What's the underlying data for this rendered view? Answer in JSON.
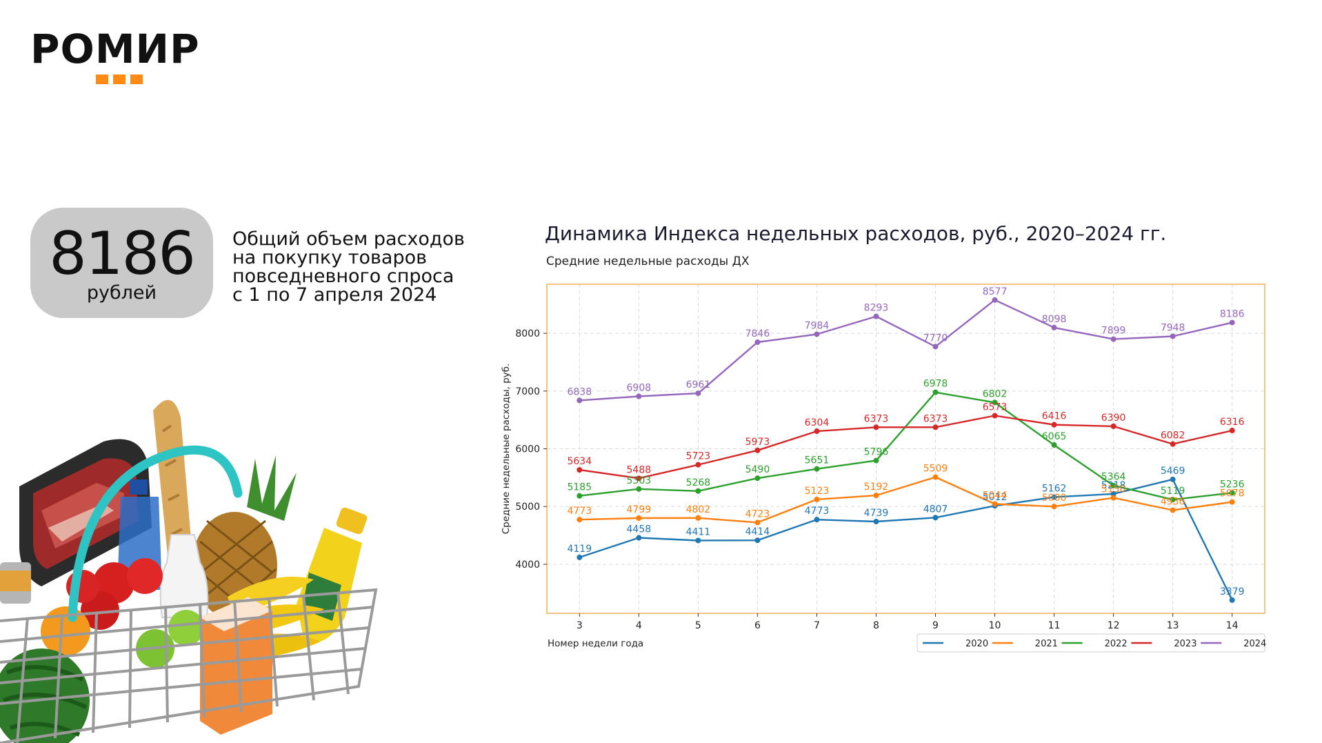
{
  "logo": {
    "text": "РОМИР"
  },
  "kpi": {
    "value": "8186",
    "unit": "рублей",
    "description_lines": [
      "Общий объем расходов",
      "на покупку товаров",
      "повседневного спроса",
      "с 1 по 7 апреля 2024"
    ]
  },
  "colors": {
    "accent": "#ff8a14",
    "pill": "#c9c9c9",
    "plot_border": "#f0a23a"
  },
  "chart_data": {
    "type": "line",
    "title": "Динамика Индекса недельных расходов, руб., 2020–2024 гг.",
    "subtitle": "Средние недельные расходы ДХ",
    "xlabel": "Номер недели года",
    "ylabel": "Средние недельные расходы, руб.",
    "x": [
      3,
      4,
      5,
      6,
      7,
      8,
      9,
      10,
      11,
      12,
      13,
      14
    ],
    "xlim": [
      2.45,
      14.55
    ],
    "ylim": [
      3150,
      8850
    ],
    "yticks": [
      4000,
      5000,
      6000,
      7000,
      8000
    ],
    "grid": true,
    "legend_position": "bottom-right",
    "series": [
      {
        "name": "2020",
        "color": "#1f77b4",
        "values": [
          4119,
          4458,
          4411,
          4414,
          4773,
          4739,
          4807,
          5012,
          5162,
          5218,
          5469,
          3379
        ],
        "labels": [
          "4119",
          "4458",
          "4411",
          "4414",
          "4773",
          "4739",
          "4807",
          "5012",
          "5162",
          "5218",
          "5469",
          "3379"
        ]
      },
      {
        "name": "2021",
        "color": "#ff7f0e",
        "values": [
          4773,
          4799,
          4802,
          4723,
          5123,
          5192,
          5509,
          5044,
          5000,
          5150,
          4936,
          5078
        ],
        "labels": [
          "4773",
          "4799",
          "4802",
          "4723",
          "5123",
          "5192",
          "5509",
          "5044",
          "5000",
          "5150",
          "4936",
          "5078"
        ]
      },
      {
        "name": "2022",
        "color": "#2ca02c",
        "values": [
          5185,
          5303,
          5268,
          5490,
          5651,
          5796,
          6978,
          6802,
          6065,
          5364,
          5119,
          5236
        ],
        "labels": [
          "5185",
          "5303",
          "5268",
          "5490",
          "5651",
          "5796",
          "6978",
          "6802",
          "6065",
          "5364",
          "5119",
          "5236"
        ]
      },
      {
        "name": "2023",
        "color": "#d62728",
        "values": [
          5634,
          5488,
          5723,
          5973,
          6304,
          6373,
          6373,
          6573,
          6416,
          6390,
          6082,
          6316
        ],
        "labels": [
          "5634",
          "5488",
          "5723",
          "5973",
          "6304",
          "6373",
          "6373",
          "6573",
          "6416",
          "6390",
          "6082",
          "6316"
        ]
      },
      {
        "name": "2024",
        "color": "#9467bd",
        "values": [
          6838,
          6908,
          6961,
          7846,
          7984,
          8293,
          7770,
          8577,
          8098,
          7899,
          7948,
          8186
        ],
        "labels": [
          "6838",
          "6908",
          "6961",
          "7846",
          "7984",
          "8293",
          "7770",
          "8577",
          "8098",
          "7899",
          "7948",
          "8186"
        ]
      }
    ]
  }
}
